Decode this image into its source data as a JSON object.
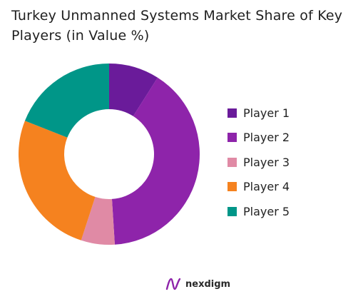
{
  "chart_data": {
    "type": "pie",
    "title": "Turkey Unmanned Systems Market Share of Key Players (in Value %)",
    "donut": true,
    "legend_position": "right",
    "categories": [
      "Player 1",
      "Player 2",
      "Player 3",
      "Player 4",
      "Player 5"
    ],
    "values": [
      9,
      40,
      6,
      26,
      19
    ],
    "colors": [
      "#6a1b9a",
      "#8e24aa",
      "#e08aa5",
      "#f5821f",
      "#009688"
    ]
  },
  "brand": {
    "name": "nexdigm",
    "icon": "nexdigm-logo-icon",
    "color": "#8e24aa"
  }
}
